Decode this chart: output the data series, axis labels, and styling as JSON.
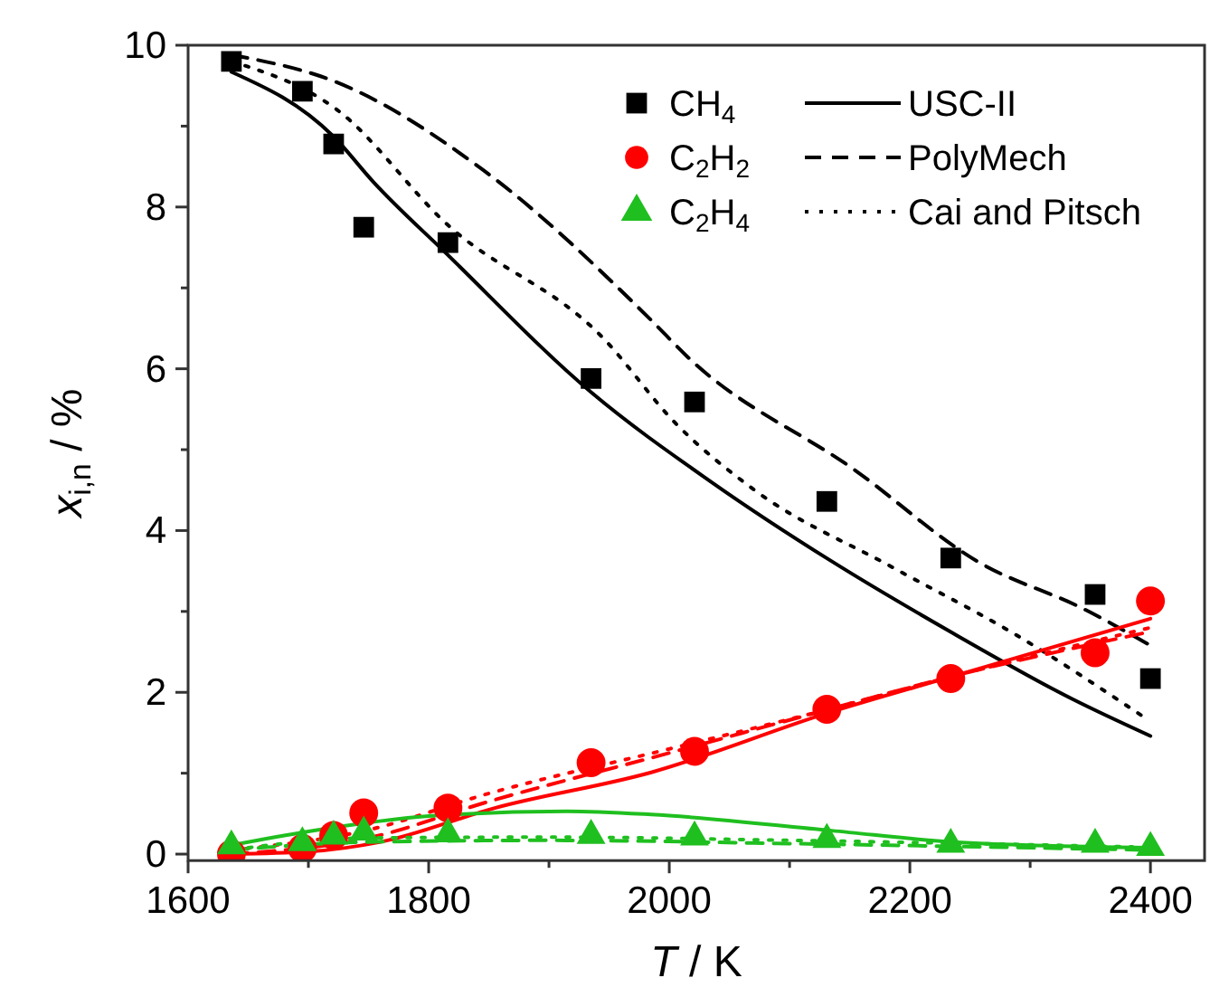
{
  "chart_data": {
    "type": "scatter",
    "xlabel": "T / K",
    "ylabel": "x$_{i,n}$ / %",
    "xlim": [
      1600,
      2445
    ],
    "ylim": [
      -0.08,
      10
    ],
    "xticks": [
      1600,
      {
        "value": 1700,
        "label": null
      },
      1800,
      {
        "value": 1900,
        "label": null
      },
      2000,
      {
        "value": 2100,
        "label": null
      },
      2200,
      {
        "value": 2300,
        "label": null
      },
      2400
    ],
    "yticks": [
      0,
      {
        "value": 1,
        "label": null
      },
      2,
      {
        "value": 3,
        "label": null
      },
      4,
      {
        "value": 5,
        "label": null
      },
      6,
      {
        "value": 7,
        "label": null
      },
      8,
      {
        "value": 9,
        "label": null
      },
      10
    ],
    "legend": "top right",
    "grid": false,
    "series": [
      {
        "type": "line",
        "name": "USC-II",
        "color": "#000000",
        "line_style": "solid",
        "x": [
          1636,
          1721,
          1754,
          1815,
          1935,
          2035,
          2135,
          2236,
          2336,
          2400
        ],
        "values": [
          9.67,
          8.87,
          8.31,
          7.42,
          5.71,
          4.6,
          3.62,
          2.73,
          1.91,
          1.46
        ]
      },
      {
        "type": "line",
        "name": "PolyMech",
        "color": "#000000",
        "line_style": "dashed",
        "x": [
          1636,
          1724,
          1845,
          1985,
          2015,
          2155,
          2256,
          2346,
          2400
        ],
        "values": [
          9.88,
          9.54,
          8.46,
          6.6,
          6.15,
          4.74,
          3.62,
          3.02,
          2.58
        ]
      },
      {
        "type": "line",
        "name": "Cai and Pitsch",
        "color": "#000000",
        "line_style": "dotted",
        "x": [
          1636,
          1724,
          1815,
          1945,
          2005,
          2070,
          2185,
          2286,
          2396
        ],
        "values": [
          9.8,
          9.2,
          7.79,
          6.38,
          5.33,
          4.51,
          3.55,
          2.73,
          1.68
        ]
      },
      {
        "type": "line",
        "color": "#ff0000",
        "line_style": "solid",
        "x": [
          1636,
          1700,
          1760,
          1855,
          1985,
          2135,
          2236,
          2400
        ],
        "values": [
          0,
          0.03,
          0.15,
          0.57,
          1.01,
          1.76,
          2.2,
          2.91
        ]
      },
      {
        "type": "line",
        "color": "#ff0000",
        "line_style": "dashed",
        "x": [
          1636,
          1750,
          1850,
          2000,
          2135,
          2236,
          2400
        ],
        "values": [
          0,
          0.2,
          0.65,
          1.25,
          1.8,
          2.2,
          2.75
        ]
      },
      {
        "type": "line",
        "color": "#ff0000",
        "line_style": "dotted",
        "x": [
          1636,
          1750,
          1850,
          2000,
          2135,
          2236,
          2400
        ],
        "values": [
          0.05,
          0.3,
          0.75,
          1.3,
          1.8,
          2.2,
          2.8
        ]
      },
      {
        "type": "line",
        "color": "#1fbf1f",
        "line_style": "solid",
        "x": [
          1636,
          1700,
          1800,
          1915,
          1985,
          2135,
          2236,
          2400
        ],
        "values": [
          0.11,
          0.28,
          0.47,
          0.53,
          0.49,
          0.29,
          0.15,
          0.08
        ]
      },
      {
        "type": "line",
        "color": "#1fbf1f",
        "line_style": "dashed",
        "x": [
          1636,
          1750,
          1900,
          2100,
          2400
        ],
        "values": [
          0.05,
          0.15,
          0.17,
          0.13,
          0.05
        ]
      },
      {
        "type": "line",
        "color": "#1fbf1f",
        "line_style": "dotted",
        "x": [
          1650,
          1750,
          1900,
          2100,
          2385
        ],
        "values": [
          0.08,
          0.2,
          0.21,
          0.17,
          0.09
        ]
      },
      {
        "name": "CH$_{4}$",
        "color": "#000000",
        "marker": "square",
        "x": [
          1636,
          1695,
          1721,
          1746,
          1816,
          1935,
          2021,
          2131,
          2234,
          2354,
          2400
        ],
        "values": [
          9.8,
          9.43,
          8.78,
          7.75,
          7.56,
          5.88,
          5.59,
          4.36,
          3.66,
          3.21,
          2.17
        ]
      },
      {
        "name": "C$_{2}$H$_{2}$",
        "color": "#ff0000",
        "marker": "circle",
        "x": [
          1636,
          1695,
          1721,
          1746,
          1816,
          1935,
          2021,
          2131,
          2234,
          2354,
          2400
        ],
        "values": [
          0,
          0.07,
          0.23,
          0.51,
          0.57,
          1.13,
          1.27,
          1.79,
          2.17,
          2.49,
          3.13
        ]
      },
      {
        "name": "C$_{2}$H$_{4}$",
        "color": "#1fbf1f",
        "marker": "triangle",
        "x": [
          1636,
          1695,
          1721,
          1746,
          1816,
          1935,
          2021,
          2131,
          2234,
          2354,
          2400
        ],
        "values": [
          0.1,
          0.14,
          0.22,
          0.27,
          0.25,
          0.23,
          0.21,
          0.18,
          0.12,
          0.12,
          0.08
        ]
      }
    ]
  }
}
